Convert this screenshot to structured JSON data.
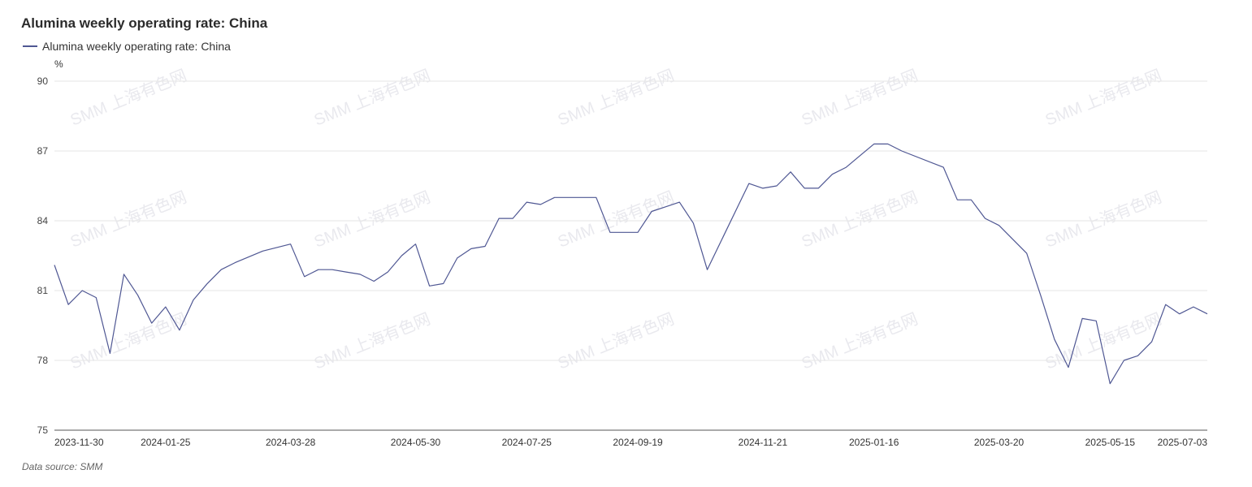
{
  "chart_data": {
    "type": "line",
    "title": "Alumina weekly operating rate: China",
    "unit_label": "%",
    "source_label": "Data source:  SMM",
    "watermark": "SMM 上海有色网",
    "ylim": [
      75,
      90
    ],
    "yticks": [
      75,
      78,
      81,
      84,
      87,
      90
    ],
    "grid": true,
    "legend_position": "top-left",
    "xtick_labels": [
      "2023-11-30",
      "2024-01-25",
      "2024-03-28",
      "2024-05-30",
      "2024-07-25",
      "2024-09-19",
      "2024-11-21",
      "2025-01-16",
      "2025-03-20",
      "2025-05-15",
      "2025-07-03"
    ],
    "series": [
      {
        "name": "Alumina weekly operating rate: China",
        "color": "#4f5793",
        "points": [
          [
            "2023-11-30",
            82.1
          ],
          [
            "2023-12-07",
            80.4
          ],
          [
            "2023-12-14",
            81.0
          ],
          [
            "2023-12-21",
            80.7
          ],
          [
            "2023-12-28",
            78.3
          ],
          [
            "2024-01-04",
            81.7
          ],
          [
            "2024-01-11",
            80.8
          ],
          [
            "2024-01-18",
            79.6
          ],
          [
            "2024-01-25",
            80.3
          ],
          [
            "2024-02-01",
            79.3
          ],
          [
            "2024-02-08",
            80.6
          ],
          [
            "2024-02-15",
            81.3
          ],
          [
            "2024-02-22",
            81.9
          ],
          [
            "2024-02-29",
            82.2
          ],
          [
            "2024-03-14",
            82.7
          ],
          [
            "2024-03-28",
            83.0
          ],
          [
            "2024-04-04",
            81.6
          ],
          [
            "2024-04-11",
            81.9
          ],
          [
            "2024-04-18",
            81.9
          ],
          [
            "2024-04-25",
            81.8
          ],
          [
            "2024-05-02",
            81.7
          ],
          [
            "2024-05-09",
            81.4
          ],
          [
            "2024-05-16",
            81.8
          ],
          [
            "2024-05-23",
            82.5
          ],
          [
            "2024-05-30",
            83.0
          ],
          [
            "2024-06-06",
            81.2
          ],
          [
            "2024-06-13",
            81.3
          ],
          [
            "2024-06-20",
            82.4
          ],
          [
            "2024-06-27",
            82.8
          ],
          [
            "2024-07-04",
            82.9
          ],
          [
            "2024-07-11",
            84.1
          ],
          [
            "2024-07-18",
            84.1
          ],
          [
            "2024-07-25",
            84.8
          ],
          [
            "2024-08-01",
            84.7
          ],
          [
            "2024-08-08",
            85.0
          ],
          [
            "2024-08-22",
            85.0
          ],
          [
            "2024-08-29",
            85.0
          ],
          [
            "2024-09-05",
            83.5
          ],
          [
            "2024-09-12",
            83.5
          ],
          [
            "2024-09-19",
            83.5
          ],
          [
            "2024-09-26",
            84.4
          ],
          [
            "2024-10-03",
            84.6
          ],
          [
            "2024-10-10",
            84.8
          ],
          [
            "2024-10-17",
            83.9
          ],
          [
            "2024-10-24",
            81.9
          ],
          [
            "2024-11-14",
            85.6
          ],
          [
            "2024-11-21",
            85.4
          ],
          [
            "2024-11-28",
            85.5
          ],
          [
            "2024-12-05",
            86.1
          ],
          [
            "2024-12-12",
            85.4
          ],
          [
            "2024-12-19",
            85.4
          ],
          [
            "2024-12-26",
            86.0
          ],
          [
            "2025-01-02",
            86.3
          ],
          [
            "2025-01-09",
            86.8
          ],
          [
            "2025-01-16",
            87.3
          ],
          [
            "2025-01-23",
            87.3
          ],
          [
            "2025-01-30",
            87.0
          ],
          [
            "2025-02-20",
            86.3
          ],
          [
            "2025-02-27",
            84.9
          ],
          [
            "2025-03-06",
            84.9
          ],
          [
            "2025-03-13",
            84.1
          ],
          [
            "2025-03-20",
            83.8
          ],
          [
            "2025-03-27",
            83.2
          ],
          [
            "2025-04-03",
            82.6
          ],
          [
            "2025-04-10",
            80.8
          ],
          [
            "2025-04-17",
            78.9
          ],
          [
            "2025-04-24",
            77.7
          ],
          [
            "2025-05-01",
            79.8
          ],
          [
            "2025-05-08",
            79.7
          ],
          [
            "2025-05-15",
            77.0
          ],
          [
            "2025-05-22",
            78.0
          ],
          [
            "2025-05-29",
            78.2
          ],
          [
            "2025-06-05",
            78.8
          ],
          [
            "2025-06-12",
            80.4
          ],
          [
            "2025-06-19",
            80.0
          ],
          [
            "2025-06-26",
            80.3
          ],
          [
            "2025-07-03",
            80.0
          ]
        ]
      }
    ]
  }
}
